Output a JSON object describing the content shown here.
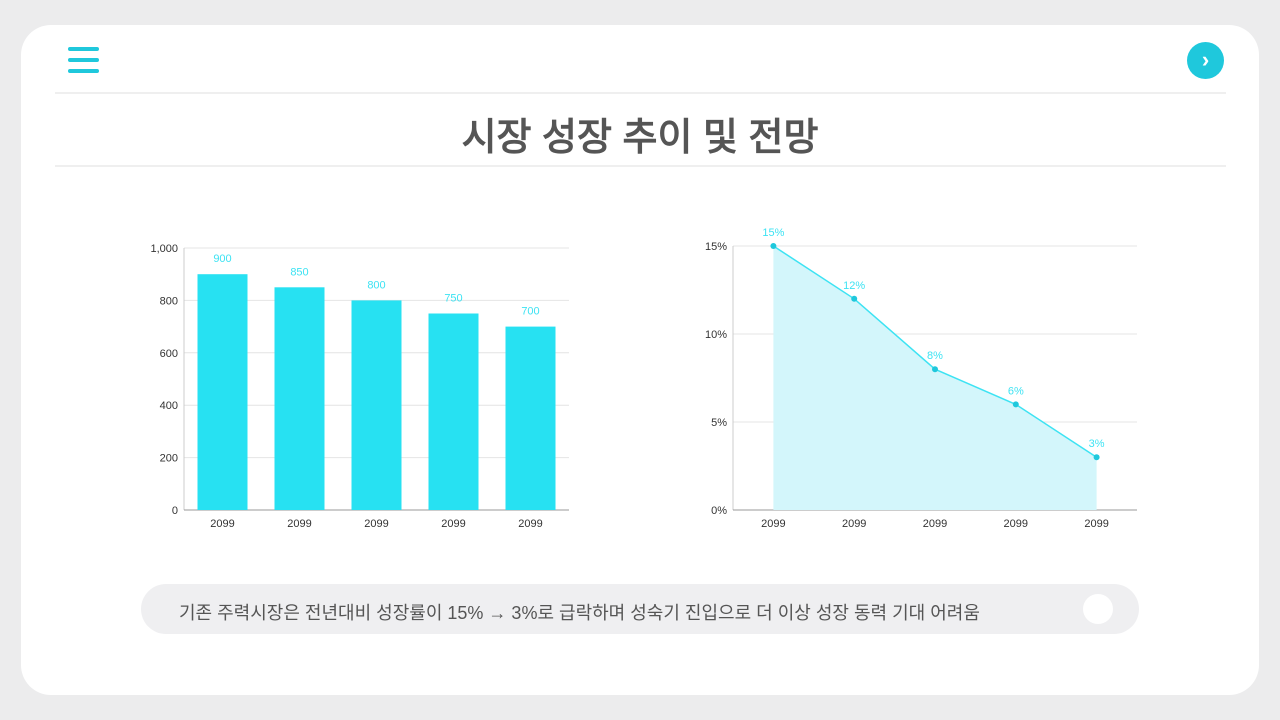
{
  "header": {
    "title": "시장 성장 추이 및 전망",
    "menu_icon": "hamburger-icon",
    "next_icon": "chevron-right-icon",
    "next_glyph": "›"
  },
  "footer_note": "기존 주력시장은 전년대비 성장률이 15% → 3%로 급락하며 성숙기 진입으로 더 이상 성장 동력 기대 어려움",
  "colors": {
    "accent": "#1fc8dc",
    "bar": "#27e1f2",
    "line": "#3de3f3",
    "area": "#d3f6fb"
  },
  "chart_data": [
    {
      "type": "bar",
      "categories": [
        "2099",
        "2099",
        "2099",
        "2099",
        "2099"
      ],
      "values": [
        900,
        850,
        800,
        750,
        700
      ],
      "ylim": [
        0,
        1000
      ],
      "yticks": [
        0,
        200,
        400,
        600,
        800,
        1000
      ],
      "ytick_labels": [
        "0",
        "200",
        "400",
        "600",
        "800",
        "1,000"
      ],
      "grid": true,
      "data_labels": [
        "900",
        "850",
        "800",
        "750",
        "700"
      ]
    },
    {
      "type": "area",
      "categories": [
        "2099",
        "2099",
        "2099",
        "2099",
        "2099"
      ],
      "values": [
        15,
        12,
        8,
        6,
        3
      ],
      "ylim": [
        0,
        15
      ],
      "yticks": [
        0,
        5,
        10,
        15
      ],
      "ytick_labels": [
        "0%",
        "5%",
        "10%",
        "15%"
      ],
      "grid": true,
      "data_labels": [
        "15%",
        "12%",
        "8%",
        "6%",
        "3%"
      ]
    }
  ]
}
